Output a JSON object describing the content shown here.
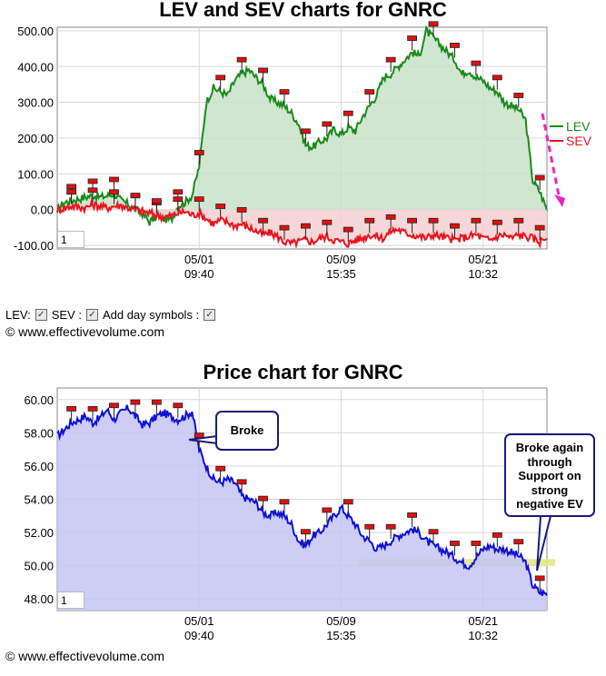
{
  "colors": {
    "lev_line": "#1a8a1a",
    "lev_fill": "#c8e2c8",
    "sev_line": "#e8141e",
    "sev_fill": "#f4d0d0",
    "price_line": "#1010d8",
    "price_fill": "#c4c4f4",
    "support_band": "#e6e68a",
    "arrow": "#ee22cc",
    "grid": "#d8d8d8"
  },
  "controls": {
    "lev_label": "LEV:",
    "sev_label": "SEV :",
    "day_symbols_label": "Add day symbols :",
    "lev_checked": true,
    "sev_checked": true,
    "day_symbols_checked": true
  },
  "copyright_top": "© www.effectivevolume.com",
  "copyright_bottom": "© www.effectivevolume.com",
  "zoom_top": "1",
  "zoom_bottom": "1",
  "annotations": {
    "broke": "Broke",
    "broke_again": [
      "Broke again",
      "through",
      "Support on",
      "strong",
      "negative EV"
    ]
  },
  "chart_data": [
    {
      "type": "area",
      "title": "LEV and SEV charts for GNRC",
      "ylim": [
        -110,
        510
      ],
      "y_ticks": [
        "500.00",
        "400.00",
        "300.00",
        "200.00",
        "100.00",
        "0.00",
        "-100.00"
      ],
      "x_ticks": [
        [
          "05/01",
          "09:40"
        ],
        [
          "05/09",
          "15:35"
        ],
        [
          "05/21",
          "10:32"
        ]
      ],
      "x_tick_index": [
        20,
        40,
        60
      ],
      "grid": true,
      "legend_position": "right",
      "series": [
        {
          "name": "LEV",
          "values": [
            0,
            20,
            25,
            30,
            35,
            40,
            35,
            38,
            45,
            25,
            15,
            0,
            -10,
            -35,
            -20,
            -25,
            -30,
            10,
            20,
            40,
            120,
            300,
            340,
            330,
            320,
            360,
            380,
            390,
            370,
            350,
            310,
            300,
            290,
            270,
            240,
            180,
            175,
            190,
            200,
            225,
            210,
            230,
            220,
            260,
            290,
            320,
            370,
            380,
            400,
            420,
            440,
            430,
            500,
            480,
            460,
            440,
            420,
            380,
            390,
            370,
            360,
            340,
            330,
            300,
            290,
            280,
            250,
            80,
            50,
            0
          ]
        },
        {
          "name": "SEV",
          "values": [
            0,
            5,
            10,
            8,
            5,
            15,
            10,
            5,
            10,
            12,
            5,
            0,
            -5,
            -10,
            -15,
            -20,
            -18,
            -10,
            -5,
            -15,
            -10,
            -25,
            -40,
            -30,
            -35,
            -45,
            -40,
            -50,
            -60,
            -70,
            -65,
            -75,
            -90,
            -95,
            -90,
            -85,
            -90,
            -80,
            -75,
            -85,
            -90,
            -95,
            -85,
            -80,
            -70,
            -75,
            -80,
            -60,
            -55,
            -65,
            -70,
            -75,
            -80,
            -70,
            -75,
            -80,
            -85,
            -80,
            -75,
            -70,
            -80,
            -85,
            -75,
            -70,
            -80,
            -70,
            -75,
            -80,
            -90,
            -75
          ]
        }
      ]
    },
    {
      "type": "area",
      "title": "Price chart for GNRC",
      "ylim": [
        47.3,
        60.7
      ],
      "y_ticks": [
        "60.00",
        "58.00",
        "56.00",
        "54.00",
        "52.00",
        "50.00",
        "48.00"
      ],
      "x_ticks": [
        [
          "05/01",
          "09:40"
        ],
        [
          "05/09",
          "15:35"
        ],
        [
          "05/21",
          "10:32"
        ]
      ],
      "x_tick_index": [
        20,
        40,
        60
      ],
      "grid": true,
      "support_level": [
        50.0,
        50.4
      ],
      "series": [
        {
          "name": "",
          "values": [
            57.8,
            58.2,
            58.6,
            58.8,
            59.0,
            58.6,
            58.9,
            59.4,
            58.8,
            59.2,
            59.5,
            59.0,
            58.5,
            58.6,
            59.0,
            59.2,
            59.0,
            58.8,
            59.0,
            59.3,
            57.0,
            56.0,
            55.2,
            55.0,
            55.2,
            55.0,
            54.2,
            54.0,
            53.8,
            53.2,
            53.0,
            53.2,
            53.0,
            52.5,
            51.5,
            51.2,
            51.8,
            52.0,
            52.5,
            53.0,
            53.5,
            53.0,
            52.5,
            51.8,
            51.5,
            51.0,
            51.2,
            51.5,
            51.8,
            52.0,
            52.2,
            52.0,
            51.5,
            51.2,
            51.0,
            50.8,
            50.5,
            50.2,
            50.0,
            50.5,
            51.0,
            51.2,
            51.0,
            51.0,
            50.8,
            50.6,
            50.2,
            48.8,
            48.4,
            48.3
          ]
        }
      ]
    }
  ]
}
